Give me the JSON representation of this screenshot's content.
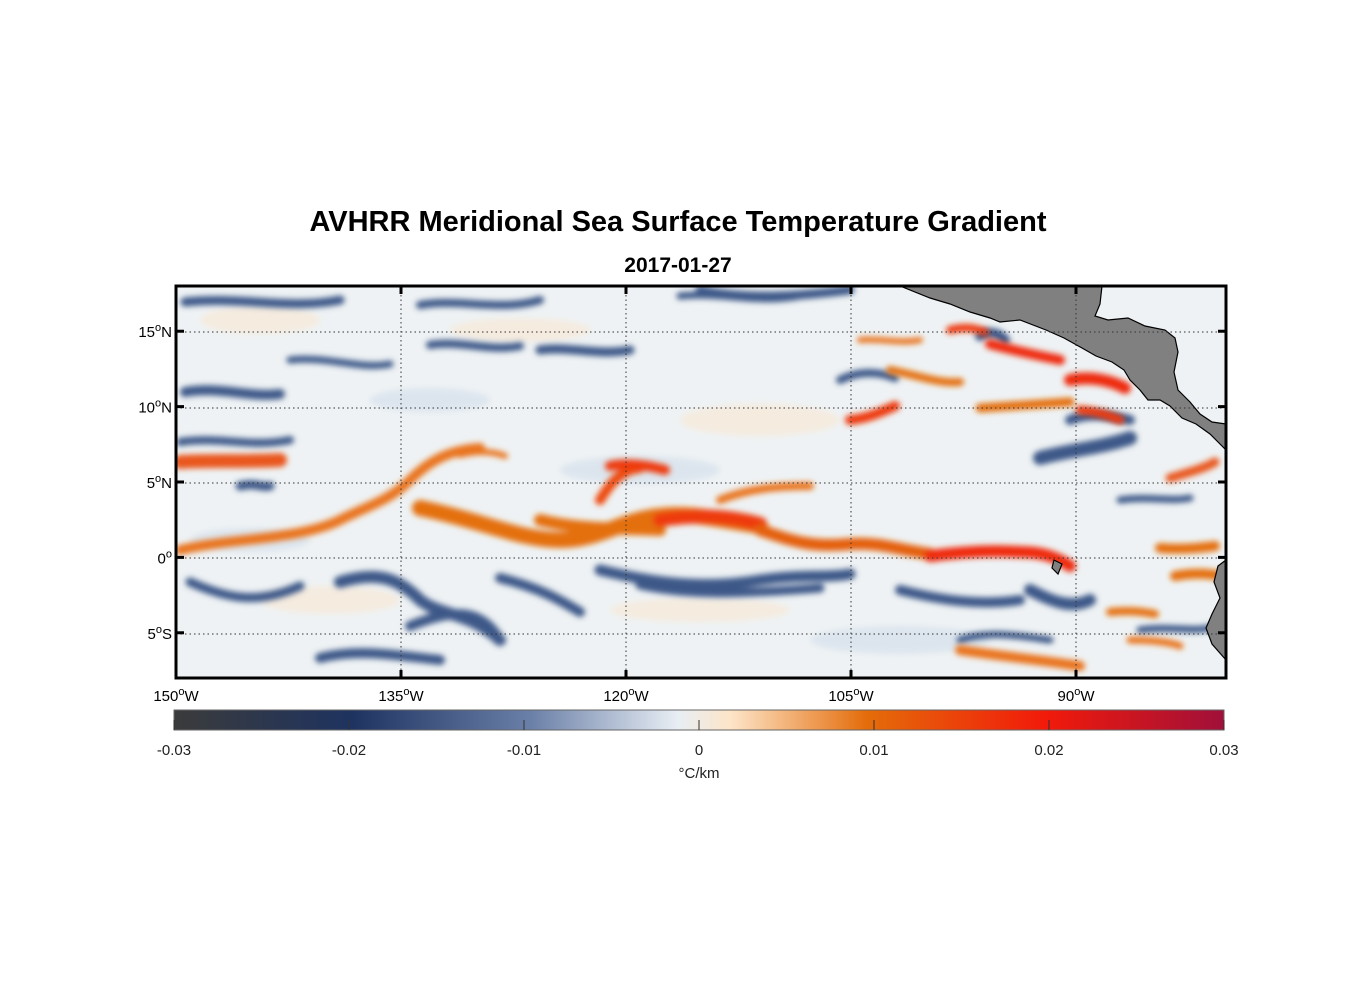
{
  "title": "AVHRR Meridional Sea Surface Temperature Gradient",
  "subtitle": "2017-01-27",
  "map": {
    "lon_range": [
      -150,
      -80
    ],
    "lat_range": [
      -8,
      18
    ],
    "lon_ticks": [
      {
        "value": -150,
        "num": "150",
        "sup": "o",
        "hem": "W"
      },
      {
        "value": -135,
        "num": "135",
        "sup": "o",
        "hem": "W"
      },
      {
        "value": -120,
        "num": "120",
        "sup": "o",
        "hem": "W"
      },
      {
        "value": -105,
        "num": "105",
        "sup": "o",
        "hem": "W"
      },
      {
        "value": -90,
        "num": "90",
        "sup": "o",
        "hem": "W"
      }
    ],
    "lat_ticks": [
      {
        "value": 15,
        "num": "15",
        "sup": "o",
        "hem": "N"
      },
      {
        "value": 10,
        "num": "10",
        "sup": "o",
        "hem": "N"
      },
      {
        "value": 5,
        "num": "5",
        "sup": "o",
        "hem": "N"
      },
      {
        "value": 0,
        "num": "0",
        "sup": "o",
        "hem": ""
      },
      {
        "value": -5,
        "num": "5",
        "sup": "o",
        "hem": "S"
      }
    ],
    "land_color": "#808080",
    "grid": "dotted"
  },
  "colorbar": {
    "min": -0.03,
    "max": 0.03,
    "ticks": [
      "-0.03",
      "-0.02",
      "-0.01",
      "0",
      "0.01",
      "0.02",
      "0.03"
    ],
    "label": "°C/km",
    "colors": [
      "#3b3b3b",
      "#1e3360",
      "#6b80a8",
      "#e8eef4",
      "#fde5c8",
      "#e46c0a",
      "#f21a0a",
      "#a0103a"
    ]
  }
}
